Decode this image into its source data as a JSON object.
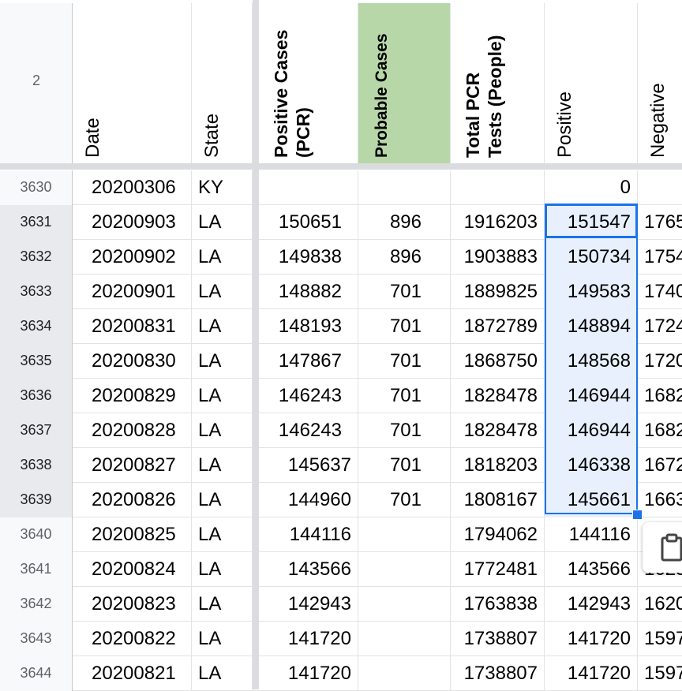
{
  "header_row_number": "2",
  "columns": {
    "date": "Date",
    "state": "State",
    "positive_cases_pcr": "Positive Cases (PCR)",
    "positive_cases_pcr_line1": "Positive Cases",
    "positive_cases_pcr_line2": "(PCR)",
    "probable_cases": "Probable Cases",
    "total_pcr_tests_line1": "Total PCR",
    "total_pcr_tests_line2": "Tests (People)",
    "positive": "Positive",
    "negative": "Negative"
  },
  "colors": {
    "probable_header_bg": "#b7d7a8",
    "selection_blue": "#1a73e8",
    "selection_fill": "#e8f0fe"
  },
  "rows": [
    {
      "rownum": "3630",
      "date": "20200306",
      "state": "KY",
      "pos_pcr": "",
      "probable": "",
      "total_pcr": "",
      "positive": "0",
      "negative": ""
    },
    {
      "rownum": "3631",
      "date": "20200903",
      "state": "LA",
      "pos_pcr": "150651",
      "probable": "896",
      "total_pcr": "1916203",
      "positive": "151547",
      "negative": "1765"
    },
    {
      "rownum": "3632",
      "date": "20200902",
      "state": "LA",
      "pos_pcr": "149838",
      "probable": "896",
      "total_pcr": "1903883",
      "positive": "150734",
      "negative": "1754"
    },
    {
      "rownum": "3633",
      "date": "20200901",
      "state": "LA",
      "pos_pcr": "148882",
      "probable": "701",
      "total_pcr": "1889825",
      "positive": "149583",
      "negative": "1740"
    },
    {
      "rownum": "3634",
      "date": "20200831",
      "state": "LA",
      "pos_pcr": "148193",
      "probable": "701",
      "total_pcr": "1872789",
      "positive": "148894",
      "negative": "1724"
    },
    {
      "rownum": "3635",
      "date": "20200830",
      "state": "LA",
      "pos_pcr": "147867",
      "probable": "701",
      "total_pcr": "1868750",
      "positive": "148568",
      "negative": "1720"
    },
    {
      "rownum": "3636",
      "date": "20200829",
      "state": "LA",
      "pos_pcr": "146243",
      "probable": "701",
      "total_pcr": "1828478",
      "positive": "146944",
      "negative": "1682"
    },
    {
      "rownum": "3637",
      "date": "20200828",
      "state": "LA",
      "pos_pcr": "146243",
      "probable": "701",
      "total_pcr": "1828478",
      "positive": "146944",
      "negative": "1682"
    },
    {
      "rownum": "3638",
      "date": "20200827",
      "state": "LA",
      "pos_pcr": "145637",
      "probable": "701",
      "total_pcr": "1818203",
      "positive": "146338",
      "negative": "1672"
    },
    {
      "rownum": "3639",
      "date": "20200826",
      "state": "LA",
      "pos_pcr": "144960",
      "probable": "701",
      "total_pcr": "1808167",
      "positive": "145661",
      "negative": "1663"
    },
    {
      "rownum": "3640",
      "date": "20200825",
      "state": "LA",
      "pos_pcr": "144116",
      "probable": "",
      "total_pcr": "1794062",
      "positive": "144116",
      "negative": ""
    },
    {
      "rownum": "3641",
      "date": "20200824",
      "state": "LA",
      "pos_pcr": "143566",
      "probable": "",
      "total_pcr": "1772481",
      "positive": "143566",
      "negative": "1623"
    },
    {
      "rownum": "3642",
      "date": "20200823",
      "state": "LA",
      "pos_pcr": "142943",
      "probable": "",
      "total_pcr": "1763838",
      "positive": "142943",
      "negative": "1620"
    },
    {
      "rownum": "3643",
      "date": "20200822",
      "state": "LA",
      "pos_pcr": "141720",
      "probable": "",
      "total_pcr": "1738807",
      "positive": "141720",
      "negative": "1597"
    },
    {
      "rownum": "3644",
      "date": "20200821",
      "state": "LA",
      "pos_pcr": "141720",
      "probable": "",
      "total_pcr": "1738807",
      "positive": "141720",
      "negative": "1597"
    }
  ],
  "paste_options_icon": "clipboard-icon"
}
